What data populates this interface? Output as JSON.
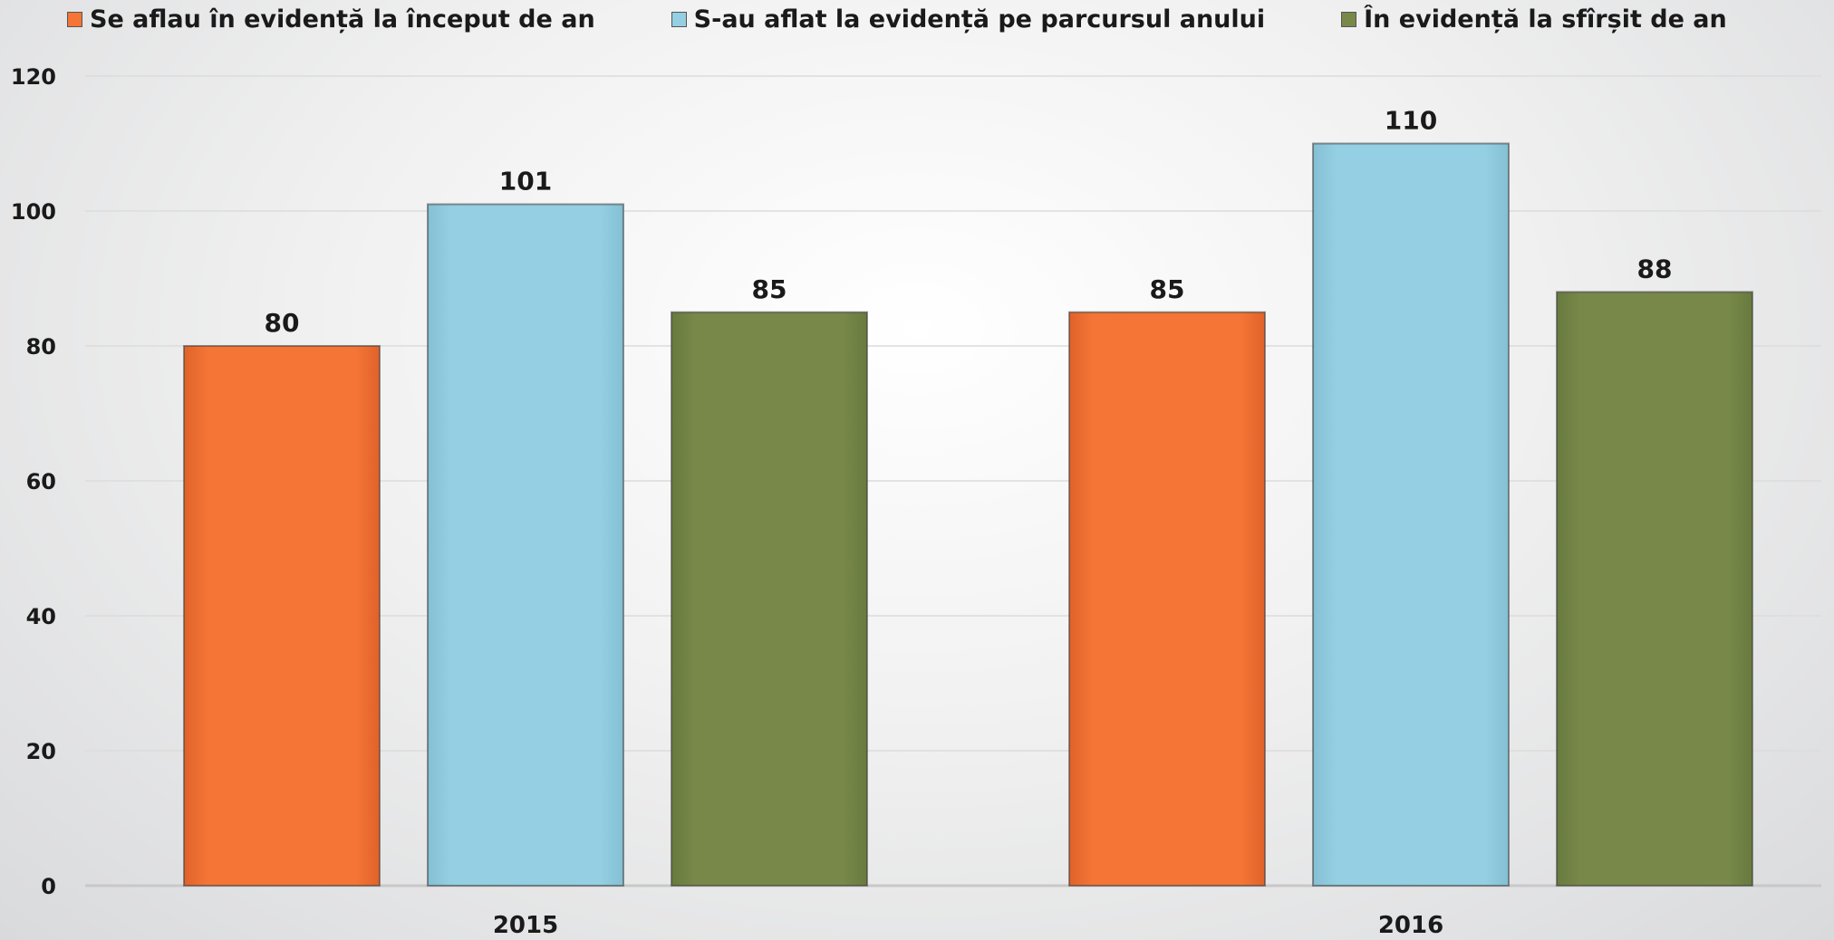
{
  "chart_data": {
    "type": "bar",
    "categories": [
      "2015",
      "2016"
    ],
    "series": [
      {
        "name": "Se aflau în evidență la început de an",
        "color": "#f47535",
        "values": [
          80,
          85
        ]
      },
      {
        "name": "S-au aflat la evidență pe parcursul anului",
        "color": "#94cfe3",
        "values": [
          101,
          110
        ]
      },
      {
        "name": "În evidență la sfîrșit de an",
        "color": "#778849",
        "values": [
          85,
          88
        ]
      }
    ],
    "y_ticks": [
      "0",
      "20",
      "40",
      "60",
      "80",
      "100",
      "120"
    ],
    "data_labels": [
      [
        "80",
        "85"
      ],
      [
        "101",
        "110"
      ],
      [
        "85",
        "88"
      ]
    ],
    "ylim": [
      0,
      120
    ],
    "grid": true,
    "legend_position": "top"
  }
}
